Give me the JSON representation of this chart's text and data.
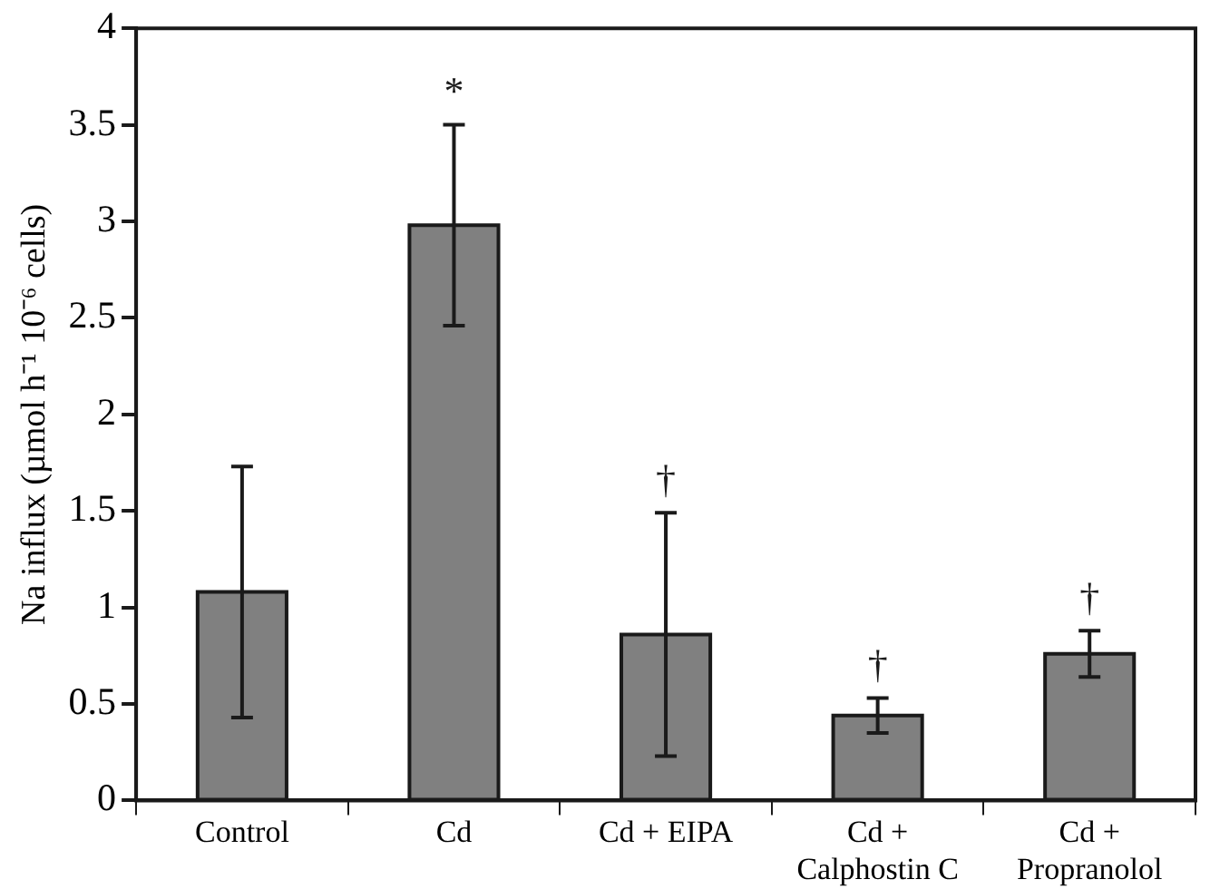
{
  "chart_data": {
    "type": "bar",
    "ylabel": "Na influx (µmol h⁻¹ 10⁻⁶ cells)",
    "categories": [
      "Control",
      "Cd",
      "Cd + EIPA",
      "Cd +\nCalphostin C",
      "Cd +\nPropranolol"
    ],
    "values": [
      1.08,
      2.98,
      0.86,
      0.44,
      0.76
    ],
    "errors": [
      0.65,
      0.52,
      0.63,
      0.09,
      0.12
    ],
    "color": "#808080",
    "ylim": [
      0,
      4
    ],
    "yticks": [
      0,
      0.5,
      1,
      1.5,
      2,
      2.5,
      3,
      3.5,
      4
    ],
    "grid": false,
    "legend": false,
    "annotations": [
      {
        "text": "*",
        "x": "Cd",
        "y": 3.5
      },
      {
        "text": "†",
        "x": "Cd + EIPA",
        "y": 1.49
      },
      {
        "text": "†",
        "x": "Cd +\nCalphostin C",
        "y": 0.53
      },
      {
        "text": "†",
        "x": "Cd +\nPropranolol",
        "y": 0.88
      }
    ]
  }
}
